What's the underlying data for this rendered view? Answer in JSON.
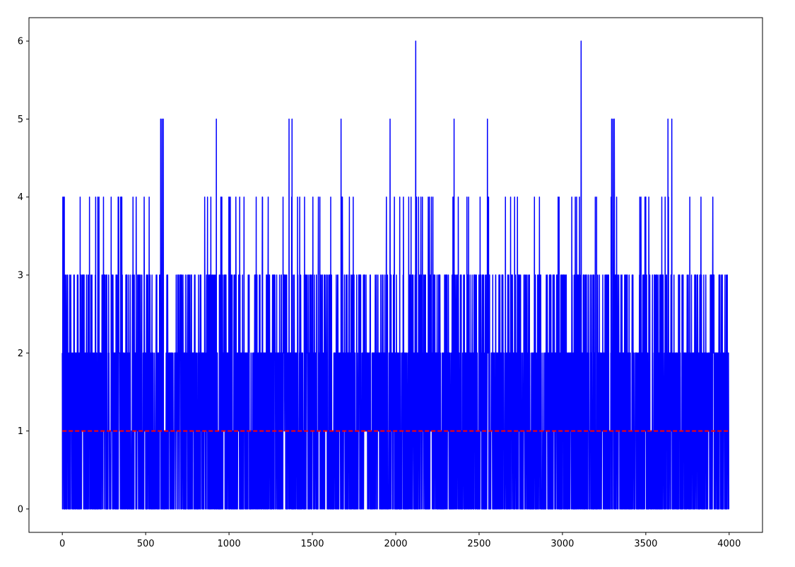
{
  "chart_data": {
    "type": "line",
    "title": "",
    "xlabel": "",
    "ylabel": "",
    "xlim": [
      -200,
      4200
    ],
    "ylim": [
      -0.3,
      6.3
    ],
    "x_ticks": [
      0,
      500,
      1000,
      1500,
      2000,
      2500,
      3000,
      3500,
      4000
    ],
    "y_ticks": [
      0,
      1,
      2,
      3,
      4,
      5,
      6
    ],
    "x_tick_labels": [
      "0",
      "500",
      "1000",
      "1500",
      "2000",
      "2500",
      "3000",
      "3500",
      "4000"
    ],
    "y_tick_labels": [
      "0",
      "1",
      "2",
      "3",
      "4",
      "5",
      "6"
    ],
    "grid": false,
    "n_points": 4000,
    "series": [
      {
        "color": "#0000ff",
        "style": "solid",
        "description_values": "integer counts 0–6 for x = 0..3999, densely oscillating",
        "peaks": [
          {
            "x": 2120,
            "y": 6
          },
          {
            "x": 3112,
            "y": 6
          },
          {
            "x": 590,
            "y": 5
          },
          {
            "x": 598,
            "y": 5
          },
          {
            "x": 606,
            "y": 5
          },
          {
            "x": 924,
            "y": 5
          },
          {
            "x": 1360,
            "y": 5
          },
          {
            "x": 1378,
            "y": 5
          },
          {
            "x": 1672,
            "y": 5
          },
          {
            "x": 1966,
            "y": 5
          },
          {
            "x": 2350,
            "y": 5
          },
          {
            "x": 2550,
            "y": 5
          },
          {
            "x": 3295,
            "y": 5
          },
          {
            "x": 3303,
            "y": 5
          },
          {
            "x": 3311,
            "y": 5
          },
          {
            "x": 3633,
            "y": 5
          },
          {
            "x": 3656,
            "y": 5
          }
        ]
      },
      {
        "color": "#ff0000",
        "style": "dashed",
        "x": [
          0,
          3999
        ],
        "y": [
          1,
          1
        ]
      }
    ]
  },
  "colors": {
    "series_line": "#0000ff",
    "mean_line": "#ff0000",
    "axes": "#000000",
    "background": "#ffffff"
  }
}
